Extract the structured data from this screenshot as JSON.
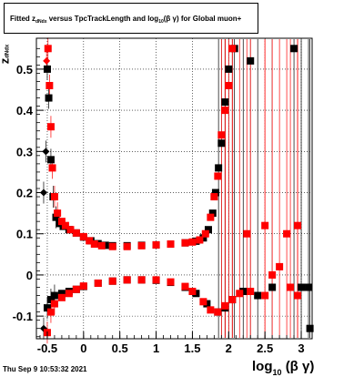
{
  "title": {
    "prefix": "Fitted  z",
    "sub": "dNdx",
    "middle": " versus TpcTrackLength and log",
    "sub2": "10",
    "suffix": "(β γ) for Global muon+"
  },
  "footer": "Thu Sep  9 10:53:32 2021",
  "colors": {
    "series_black": "#000000",
    "series_red": "#ff0000",
    "grid": "#000000"
  },
  "chart_data": {
    "type": "scatter",
    "xlabel": {
      "main": "log",
      "sub": "10",
      "tail": "(β γ)"
    },
    "ylabel": {
      "main": "z",
      "sub": "dNdx"
    },
    "xlim": [
      -0.65,
      3.15
    ],
    "ylim": [
      -0.155,
      0.575
    ],
    "grid": true,
    "x_ticks": [
      -0.5,
      0,
      0.5,
      1,
      1.5,
      2,
      2.5,
      3
    ],
    "x_tick_labels": [
      "-0.5",
      "0",
      "0.5",
      "1",
      "1.5",
      "2",
      "2.5",
      "3"
    ],
    "y_ticks": [
      -0.1,
      0,
      0.1,
      0.2,
      0.3,
      0.4,
      0.5
    ],
    "y_tick_labels": [
      "-0.1",
      "0",
      "0.1",
      "0.2",
      "0.3",
      "0.4",
      "0.5"
    ],
    "series": [
      {
        "color": "black",
        "points": [
          [
            -0.55,
            0.2
          ],
          [
            -0.52,
            0.3
          ],
          [
            -0.5,
            0.5
          ],
          [
            -0.48,
            0.43
          ],
          [
            -0.45,
            0.28
          ],
          [
            -0.42,
            0.19
          ],
          [
            -0.38,
            0.14
          ],
          [
            -0.33,
            0.125
          ],
          [
            -0.28,
            0.118
          ],
          [
            -0.2,
            0.11
          ],
          [
            -0.1,
            0.102
          ],
          [
            0.0,
            0.092
          ],
          [
            0.1,
            0.083
          ],
          [
            0.2,
            0.076
          ],
          [
            0.3,
            0.072
          ],
          [
            0.4,
            0.071
          ],
          [
            0.6,
            0.071
          ],
          [
            0.8,
            0.072
          ],
          [
            1.0,
            0.073
          ],
          [
            1.2,
            0.075
          ],
          [
            1.4,
            0.078
          ],
          [
            1.55,
            0.082
          ],
          [
            1.65,
            0.09
          ],
          [
            1.72,
            0.11
          ],
          [
            1.78,
            0.15
          ],
          [
            1.82,
            0.2
          ],
          [
            1.86,
            0.26
          ],
          [
            1.9,
            0.32
          ],
          [
            1.95,
            0.42
          ],
          [
            2.0,
            0.5
          ],
          [
            2.08,
            0.55
          ],
          [
            2.3,
            0.52
          ],
          [
            2.9,
            0.55
          ],
          [
            -0.55,
            -0.13
          ],
          [
            -0.5,
            -0.08
          ],
          [
            -0.45,
            -0.06
          ],
          [
            -0.4,
            -0.05
          ],
          [
            -0.3,
            -0.045
          ],
          [
            -0.2,
            -0.04
          ],
          [
            -0.1,
            -0.035
          ],
          [
            0.0,
            -0.028
          ],
          [
            0.2,
            -0.02
          ],
          [
            0.4,
            -0.015
          ],
          [
            0.6,
            -0.012
          ],
          [
            0.8,
            -0.012
          ],
          [
            1.0,
            -0.013
          ],
          [
            1.2,
            -0.018
          ],
          [
            1.4,
            -0.03
          ],
          [
            1.55,
            -0.045
          ],
          [
            1.7,
            -0.07
          ],
          [
            1.85,
            -0.09
          ],
          [
            1.95,
            -0.08
          ],
          [
            2.05,
            -0.06
          ],
          [
            2.2,
            -0.04
          ],
          [
            2.4,
            -0.05
          ],
          [
            2.6,
            -0.03
          ],
          [
            3.0,
            -0.03
          ],
          [
            3.1,
            -0.03
          ],
          [
            3.12,
            -0.13
          ]
        ]
      },
      {
        "color": "red",
        "points": [
          [
            -0.51,
            0.52
          ],
          [
            -0.49,
            0.55
          ],
          [
            -0.47,
            0.46
          ],
          [
            -0.45,
            0.36
          ],
          [
            -0.43,
            0.26
          ],
          [
            -0.4,
            0.19
          ],
          [
            -0.36,
            0.15
          ],
          [
            -0.3,
            0.13
          ],
          [
            -0.25,
            0.12
          ],
          [
            -0.18,
            0.11
          ],
          [
            -0.1,
            0.102
          ],
          [
            0.0,
            0.093
          ],
          [
            0.08,
            0.083
          ],
          [
            0.15,
            0.075
          ],
          [
            0.25,
            0.071
          ],
          [
            0.4,
            0.069
          ],
          [
            0.6,
            0.069
          ],
          [
            0.8,
            0.071
          ],
          [
            1.0,
            0.073
          ],
          [
            1.2,
            0.075
          ],
          [
            1.4,
            0.078
          ],
          [
            1.5,
            0.08
          ],
          [
            1.6,
            0.085
          ],
          [
            1.68,
            0.1
          ],
          [
            1.75,
            0.14
          ],
          [
            1.8,
            0.19
          ],
          [
            1.85,
            0.24
          ],
          [
            1.9,
            0.34
          ],
          [
            1.95,
            0.4
          ],
          [
            2.0,
            0.46
          ],
          [
            2.05,
            0.55
          ],
          [
            2.25,
            0.1
          ],
          [
            2.5,
            0.12
          ],
          [
            2.8,
            0.1
          ],
          [
            2.95,
            0.12
          ],
          [
            -0.5,
            -0.14
          ],
          [
            -0.45,
            -0.09
          ],
          [
            -0.4,
            -0.07
          ],
          [
            -0.3,
            -0.055
          ],
          [
            -0.2,
            -0.045
          ],
          [
            -0.1,
            -0.035
          ],
          [
            0.0,
            -0.027
          ],
          [
            0.2,
            -0.02
          ],
          [
            0.4,
            -0.015
          ],
          [
            0.6,
            -0.012
          ],
          [
            0.8,
            -0.012
          ],
          [
            1.0,
            -0.012
          ],
          [
            1.2,
            -0.017
          ],
          [
            1.4,
            -0.028
          ],
          [
            1.5,
            -0.04
          ],
          [
            1.65,
            -0.065
          ],
          [
            1.75,
            -0.085
          ],
          [
            1.85,
            -0.09
          ],
          [
            1.95,
            -0.075
          ],
          [
            2.05,
            -0.06
          ],
          [
            2.15,
            -0.045
          ],
          [
            2.3,
            -0.04
          ],
          [
            2.5,
            -0.05
          ],
          [
            2.6,
            0.0
          ],
          [
            2.7,
            0.02
          ],
          [
            2.85,
            -0.03
          ],
          [
            2.95,
            -0.05
          ]
        ]
      }
    ]
  }
}
